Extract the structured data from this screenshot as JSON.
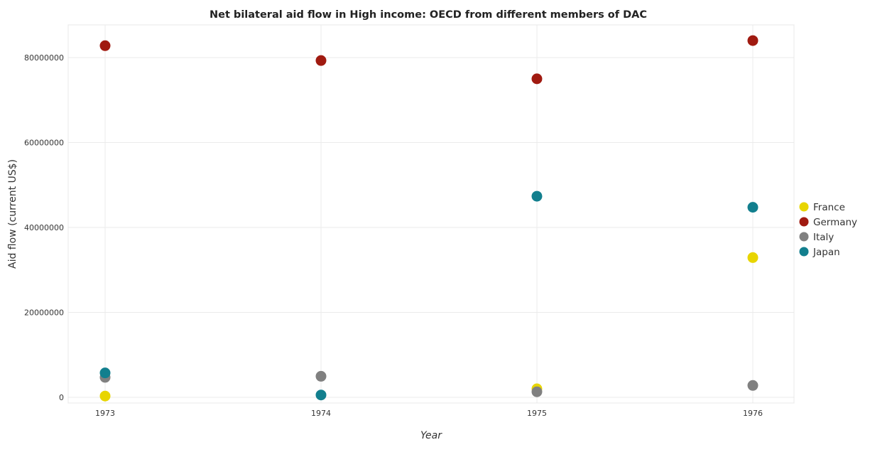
{
  "chart_data": {
    "type": "scatter",
    "title": "Net bilateral aid flow in High income: OECD from different members of DAC",
    "xlabel": "Year",
    "ylabel": "Aid flow (current US$)",
    "categories": [
      "1973",
      "1974",
      "1975",
      "1976"
    ],
    "ylim": [
      0,
      90000000
    ],
    "yticks": [
      0,
      20000000,
      40000000,
      60000000,
      80000000
    ],
    "ytick_labels": [
      "0",
      "20000000",
      "40000000",
      "60000000",
      "80000000"
    ],
    "grid": true,
    "legend_position": "right",
    "series": [
      {
        "name": "France",
        "color": "#e8d500",
        "values": [
          300000,
          null,
          2000000,
          32900000
        ]
      },
      {
        "name": "Germany",
        "color": "#a01a10",
        "values": [
          82800000,
          79300000,
          75000000,
          84000000
        ]
      },
      {
        "name": "Italy",
        "color": "#808080",
        "values": [
          4700000,
          4950000,
          1300000,
          2800000
        ]
      },
      {
        "name": "Japan",
        "color": "#127f8e",
        "values": [
          5750000,
          550000,
          47350000,
          44750000
        ]
      }
    ]
  }
}
